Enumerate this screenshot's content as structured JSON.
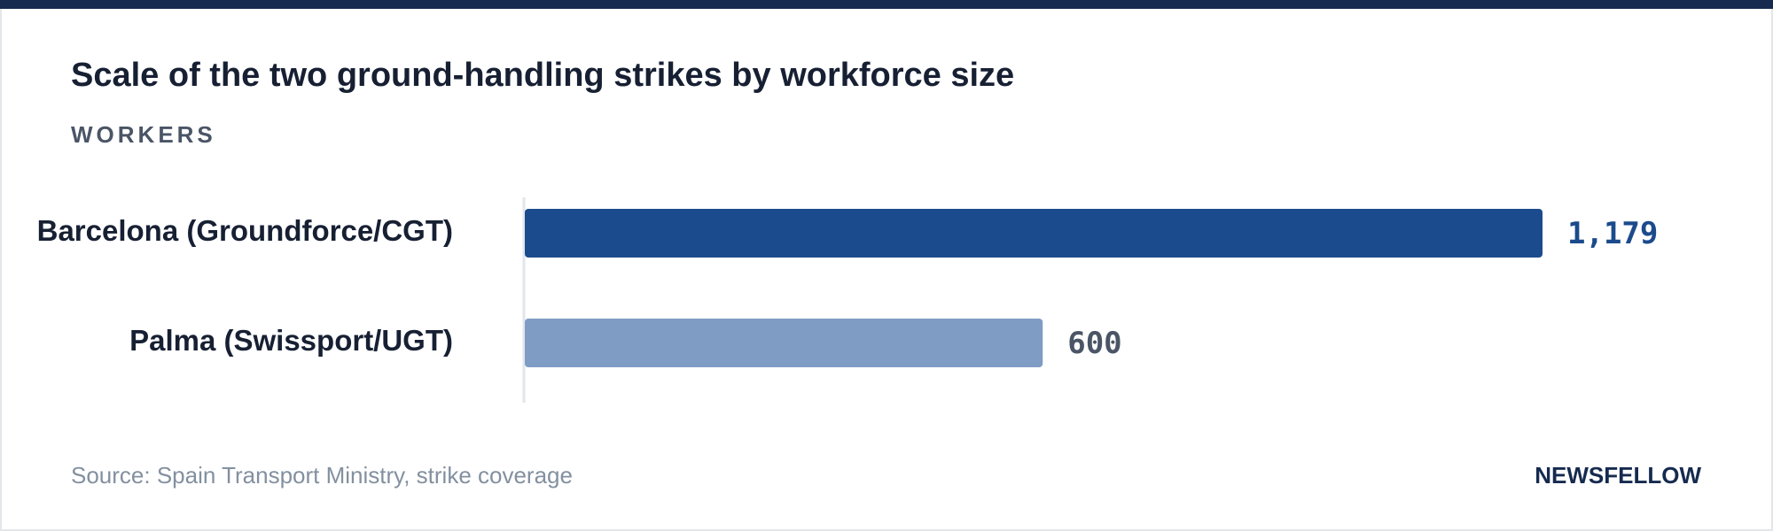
{
  "chart_data": {
    "type": "bar",
    "orientation": "horizontal",
    "title": "Scale of the two ground-handling strikes by workforce size",
    "subtitle": "WORKERS",
    "categories": [
      "Barcelona (Groundforce/CGT)",
      "Palma (Swissport/UGT)"
    ],
    "values": [
      1179,
      600
    ],
    "value_labels": [
      "1,179",
      "600"
    ],
    "colors": [
      "#1b4b8c",
      "#7f9cc4"
    ],
    "label_colors": [
      "#1b4b8c",
      "#4a5566"
    ]
  },
  "footer": {
    "source": "Source: Spain Transport Ministry, strike coverage",
    "brand": "NEWSFELLOW"
  }
}
